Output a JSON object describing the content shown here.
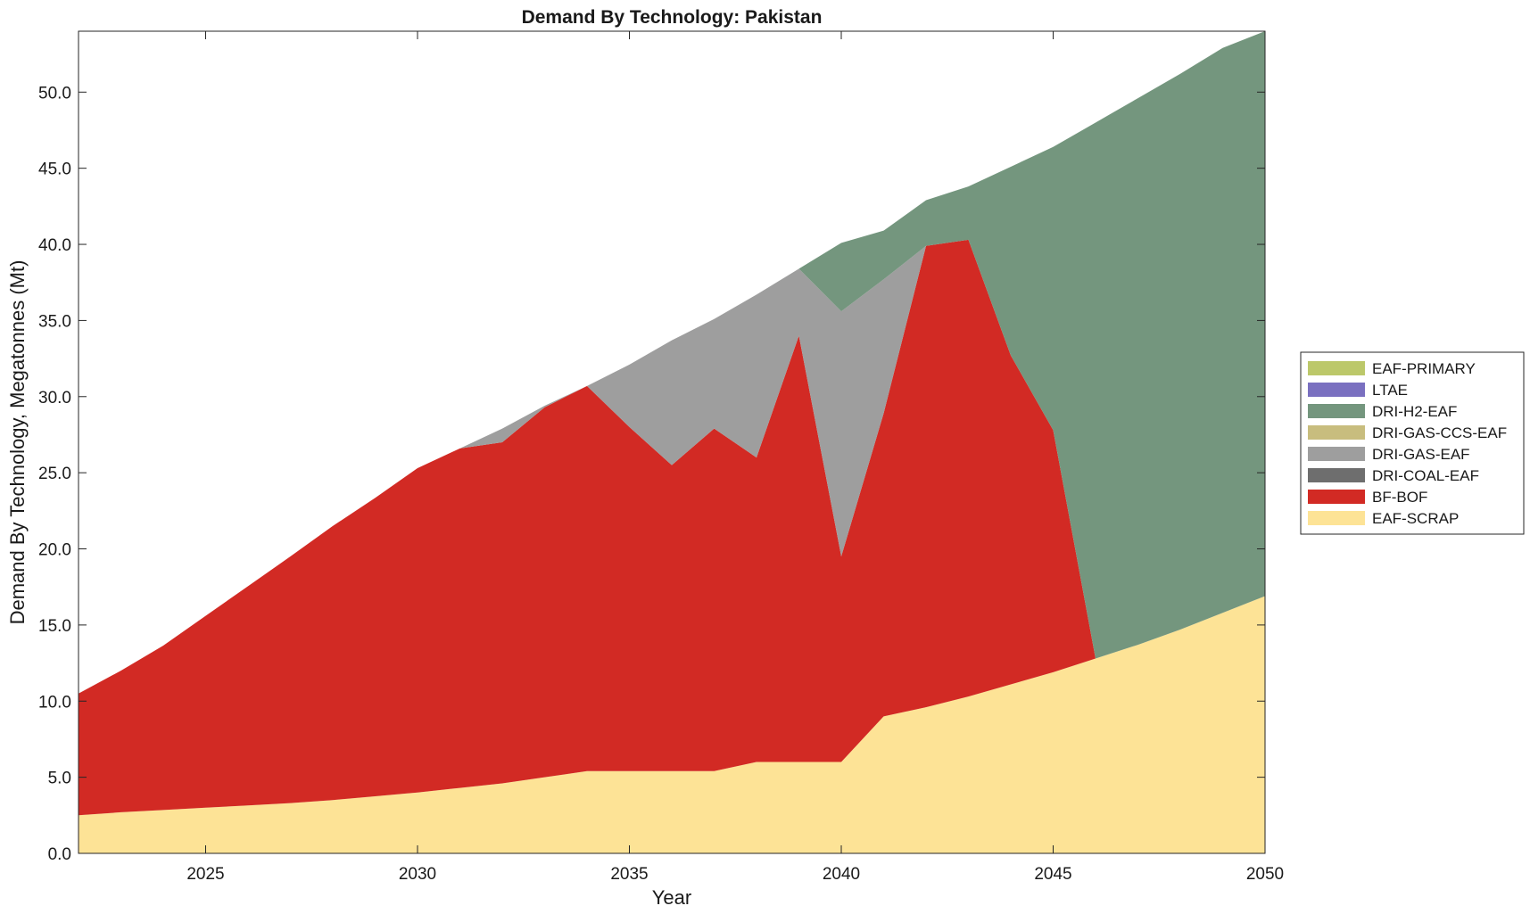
{
  "chart_data": {
    "type": "area",
    "stacked": true,
    "title": "Demand By Technology: Pakistan",
    "xlabel": "Year",
    "ylabel": "Demand By Technology, Megatonnes (Mt)",
    "xlim": [
      2022,
      2050
    ],
    "ylim": [
      0,
      54
    ],
    "x_ticks": [
      2025,
      2030,
      2035,
      2040,
      2045,
      2050
    ],
    "y_ticks": [
      "0.0",
      "5.0",
      "10.0",
      "15.0",
      "20.0",
      "25.0",
      "30.0",
      "35.0",
      "40.0",
      "45.0",
      "50.0"
    ],
    "grid": false,
    "legend_position": "right",
    "x": [
      2022,
      2023,
      2024,
      2025,
      2026,
      2027,
      2028,
      2029,
      2030,
      2031,
      2032,
      2033,
      2034,
      2035,
      2036,
      2037,
      2038,
      2039,
      2040,
      2041,
      2042,
      2043,
      2044,
      2045,
      2046,
      2047,
      2048,
      2049,
      2050
    ],
    "series": [
      {
        "name": "EAF-SCRAP",
        "color": "#fde396",
        "values": [
          2.5,
          2.7,
          2.85,
          3.0,
          3.15,
          3.3,
          3.5,
          3.75,
          4.0,
          4.3,
          4.6,
          5.0,
          5.4,
          5.4,
          5.4,
          5.4,
          6.0,
          6.0,
          6.0,
          9.0,
          9.6,
          10.3,
          11.1,
          11.9,
          12.8,
          13.7,
          14.7,
          15.8,
          16.9
        ]
      },
      {
        "name": "BF-BOF",
        "color": "#d22a24",
        "values": [
          8.0,
          9.3,
          10.8,
          12.6,
          14.4,
          16.2,
          18.0,
          19.6,
          21.3,
          22.3,
          22.4,
          24.3,
          25.3,
          22.6,
          20.1,
          22.5,
          20.0,
          28.0,
          13.5,
          19.9,
          30.3,
          30.0,
          21.6,
          15.9,
          0,
          0,
          0,
          0,
          0
        ]
      },
      {
        "name": "DRI-COAL-EAF",
        "color": "#6e6e6e",
        "values": [
          0,
          0,
          0,
          0,
          0,
          0,
          0,
          0,
          0,
          0,
          0,
          0,
          0,
          0,
          0,
          0,
          0,
          0,
          0,
          0,
          0,
          0,
          0,
          0,
          0,
          0,
          0,
          0,
          0
        ]
      },
      {
        "name": "DRI-GAS-EAF",
        "color": "#9e9e9e",
        "values": [
          0,
          0,
          0,
          0,
          0,
          0,
          0,
          0,
          0,
          0,
          0.9,
          0.1,
          0,
          4.1,
          8.2,
          7.2,
          10.7,
          4.4,
          16.1,
          8.8,
          0,
          0,
          0,
          0,
          0,
          0,
          0,
          0,
          0
        ]
      },
      {
        "name": "DRI-GAS-CCS-EAF",
        "color": "#c8bd7e",
        "values": [
          0,
          0,
          0,
          0,
          0,
          0,
          0,
          0,
          0,
          0,
          0,
          0,
          0,
          0,
          0,
          0,
          0,
          0,
          0,
          0,
          0,
          0,
          0,
          0,
          0,
          0,
          0,
          0,
          0
        ]
      },
      {
        "name": "DRI-H2-EAF",
        "color": "#74967e",
        "values": [
          0,
          0,
          0,
          0,
          0,
          0,
          0,
          0,
          0,
          0,
          0,
          0,
          0,
          0,
          0,
          0,
          0,
          0,
          4.5,
          3.2,
          3.0,
          3.5,
          12.4,
          18.6,
          35.2,
          35.9,
          36.5,
          37.1,
          37.1
        ]
      },
      {
        "name": "LTAE",
        "color": "#7a70c0",
        "values": [
          0,
          0,
          0,
          0,
          0,
          0,
          0,
          0,
          0,
          0,
          0,
          0,
          0,
          0,
          0,
          0,
          0,
          0,
          0,
          0,
          0,
          0,
          0,
          0,
          0,
          0,
          0,
          0,
          0
        ]
      },
      {
        "name": "EAF-PRIMARY",
        "color": "#bcc86a",
        "values": [
          0,
          0,
          0,
          0,
          0,
          0,
          0,
          0,
          0,
          0,
          0,
          0,
          0,
          0,
          0,
          0,
          0,
          0,
          0,
          0,
          0,
          0,
          0,
          0,
          0,
          0,
          0,
          0,
          0
        ]
      }
    ]
  }
}
